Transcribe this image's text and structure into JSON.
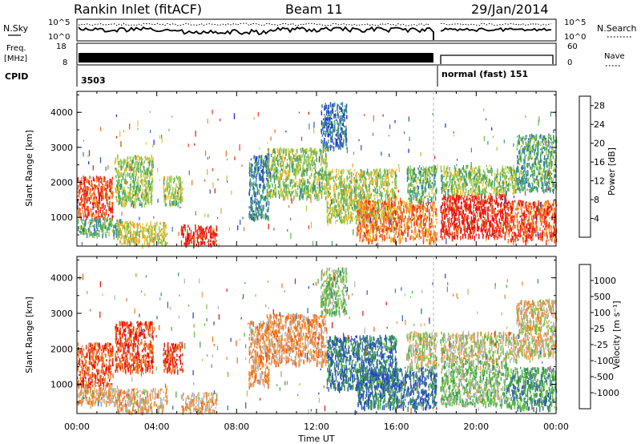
{
  "header": {
    "station": "Rankin Inlet (fitACF)",
    "beam": "Beam 11",
    "date": "29/Jan/2014"
  },
  "panels": {
    "nsky": {
      "label": "N.Sky",
      "left_ticks": [
        "10^5",
        "10^0"
      ],
      "right_ticks": [
        "10^5",
        "10^0"
      ],
      "right_label": "N.Search"
    },
    "freq": {
      "label_top": "Freq.",
      "label_bottom": "[MHz]",
      "left_ticks": [
        "18",
        "8"
      ],
      "right_ticks": [
        "60",
        "0"
      ],
      "right_label": "Nave"
    },
    "cpid": {
      "label": "CPID",
      "segments": [
        "3503",
        "normal (fast) 151"
      ],
      "switch_time_hours": 18.0
    }
  },
  "chart_data": [
    {
      "type": "heatmap",
      "name": "power",
      "ylabel": "Slant Range [km]",
      "xlabel": "",
      "xlim": [
        0,
        24
      ],
      "ylim": [
        180,
        4600
      ],
      "yticks": [
        1000,
        2000,
        3000,
        4000
      ],
      "colorbar": {
        "label": "Power [dB]",
        "ticks": [
          4,
          8,
          12,
          16,
          20,
          24,
          28
        ],
        "range": [
          0,
          30
        ],
        "colors": [
          "#1a1aff",
          "#2d52b8",
          "#2f7fa0",
          "#3c9a6a",
          "#63b85a",
          "#a8cc3c",
          "#f0c030",
          "#f59a20",
          "#f26e1c",
          "#ee3a18",
          "#e81010"
        ]
      },
      "regions": [
        {
          "t": [
            0.0,
            1.8
          ],
          "r": [
            1000,
            2200
          ],
          "level": 0.85
        },
        {
          "t": [
            0.0,
            2.2
          ],
          "r": [
            500,
            1000
          ],
          "level": 0.35
        },
        {
          "t": [
            1.9,
            3.8
          ],
          "r": [
            1400,
            2800
          ],
          "level": 0.45
        },
        {
          "t": [
            2.0,
            4.5
          ],
          "r": [
            250,
            900
          ],
          "level": 0.55
        },
        {
          "t": [
            4.3,
            5.3
          ],
          "r": [
            1400,
            2200
          ],
          "level": 0.5
        },
        {
          "t": [
            5.2,
            7.0
          ],
          "r": [
            250,
            800
          ],
          "level": 0.95
        },
        {
          "t": [
            8.6,
            9.6
          ],
          "r": [
            1000,
            2800
          ],
          "level": 0.25
        },
        {
          "t": [
            9.5,
            12.5
          ],
          "r": [
            1600,
            3000
          ],
          "level": 0.45
        },
        {
          "t": [
            12.5,
            16.0
          ],
          "r": [
            900,
            2400
          ],
          "level": 0.5
        },
        {
          "t": [
            14.0,
            18.0
          ],
          "r": [
            350,
            1500
          ],
          "level": 0.75
        },
        {
          "t": [
            16.5,
            18.0
          ],
          "r": [
            1500,
            2500
          ],
          "level": 0.4
        },
        {
          "t": [
            18.2,
            21.5
          ],
          "r": [
            450,
            1700
          ],
          "level": 0.95
        },
        {
          "t": [
            18.2,
            22.0
          ],
          "r": [
            1700,
            2500
          ],
          "level": 0.45
        },
        {
          "t": [
            21.5,
            24.0
          ],
          "r": [
            350,
            1500
          ],
          "level": 0.85
        },
        {
          "t": [
            22.0,
            24.0
          ],
          "r": [
            1800,
            3400
          ],
          "level": 0.35
        },
        {
          "t": [
            12.2,
            13.5
          ],
          "r": [
            3000,
            4300
          ],
          "level": 0.2
        }
      ]
    },
    {
      "type": "heatmap",
      "name": "velocity",
      "ylabel": "Slant Range [km]",
      "xlabel": "Time UT",
      "xlim": [
        0,
        24
      ],
      "ylim": [
        180,
        4600
      ],
      "yticks": [
        1000,
        2000,
        3000,
        4000
      ],
      "xticks": [
        "00:00",
        "04:00",
        "08:00",
        "12:00",
        "16:00",
        "20:00",
        "00:00"
      ],
      "colorbar": {
        "label": "Velocity [m s⁻¹]",
        "ticks": [
          "1000",
          "500",
          "100",
          "25",
          "-25",
          "-100",
          "-500",
          "-1000"
        ],
        "range": [
          -1000,
          1000
        ],
        "colors": [
          "#1e3cc8",
          "#2f62b0",
          "#3a8a5a",
          "#3caa40",
          "#6cc43c",
          "#b4b4b4",
          "#f0a050",
          "#f07c1c",
          "#ee5a12",
          "#e81010"
        ]
      },
      "regions": [
        {
          "t": [
            0.0,
            1.8
          ],
          "r": [
            1000,
            2200
          ],
          "level": 0.85
        },
        {
          "t": [
            0.0,
            2.2
          ],
          "r": [
            500,
            1000
          ],
          "level": 0.65
        },
        {
          "t": [
            1.9,
            3.8
          ],
          "r": [
            1400,
            2800
          ],
          "level": 0.9
        },
        {
          "t": [
            2.0,
            4.5
          ],
          "r": [
            250,
            900
          ],
          "level": 0.65
        },
        {
          "t": [
            4.3,
            5.3
          ],
          "r": [
            1400,
            2200
          ],
          "level": 0.9
        },
        {
          "t": [
            5.2,
            7.0
          ],
          "r": [
            250,
            800
          ],
          "level": 0.65
        },
        {
          "t": [
            8.6,
            9.6
          ],
          "r": [
            1000,
            2800
          ],
          "level": 0.7
        },
        {
          "t": [
            9.5,
            12.5
          ],
          "r": [
            1600,
            3000
          ],
          "level": 0.7
        },
        {
          "t": [
            12.5,
            16.0
          ],
          "r": [
            900,
            2400
          ],
          "level": 0.2
        },
        {
          "t": [
            14.0,
            18.0
          ],
          "r": [
            350,
            1500
          ],
          "level": 0.2
        },
        {
          "t": [
            16.5,
            18.0
          ],
          "r": [
            1500,
            2500
          ],
          "level": 0.55
        },
        {
          "t": [
            18.2,
            21.5
          ],
          "r": [
            450,
            1700
          ],
          "level": 0.45
        },
        {
          "t": [
            18.2,
            22.0
          ],
          "r": [
            1700,
            2500
          ],
          "level": 0.55
        },
        {
          "t": [
            21.5,
            24.0
          ],
          "r": [
            350,
            1500
          ],
          "level": 0.3
        },
        {
          "t": [
            22.0,
            24.0
          ],
          "r": [
            1800,
            3400
          ],
          "level": 0.6
        },
        {
          "t": [
            12.2,
            13.5
          ],
          "r": [
            3000,
            4300
          ],
          "level": 0.45
        }
      ]
    }
  ]
}
